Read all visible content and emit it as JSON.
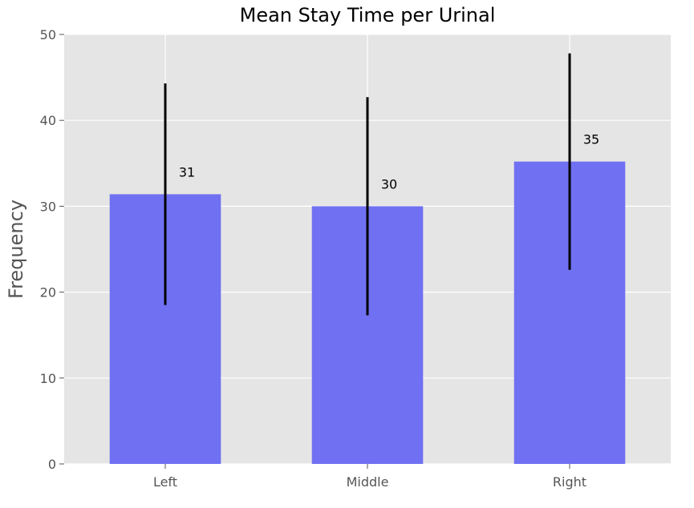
{
  "chart_data": {
    "type": "bar",
    "title": "Mean Stay Time per Urinal",
    "xlabel": "",
    "ylabel": "Frequency",
    "categories": [
      "Left",
      "Middle",
      "Right"
    ],
    "values": [
      31.4,
      30.0,
      35.2
    ],
    "error": [
      12.9,
      12.7,
      12.6
    ],
    "data_labels": [
      "31",
      "30",
      "35"
    ],
    "ylim": [
      0,
      50
    ],
    "yticks": [
      0,
      10,
      20,
      30,
      40,
      50
    ],
    "ytick_labels": [
      "0",
      "10",
      "20",
      "30",
      "40",
      "50"
    ],
    "grid": true,
    "colors": {
      "bar": "#7070f2",
      "error_bar": "#000000",
      "plot_bg": "#e5e5e5",
      "grid": "#ffffff"
    }
  }
}
